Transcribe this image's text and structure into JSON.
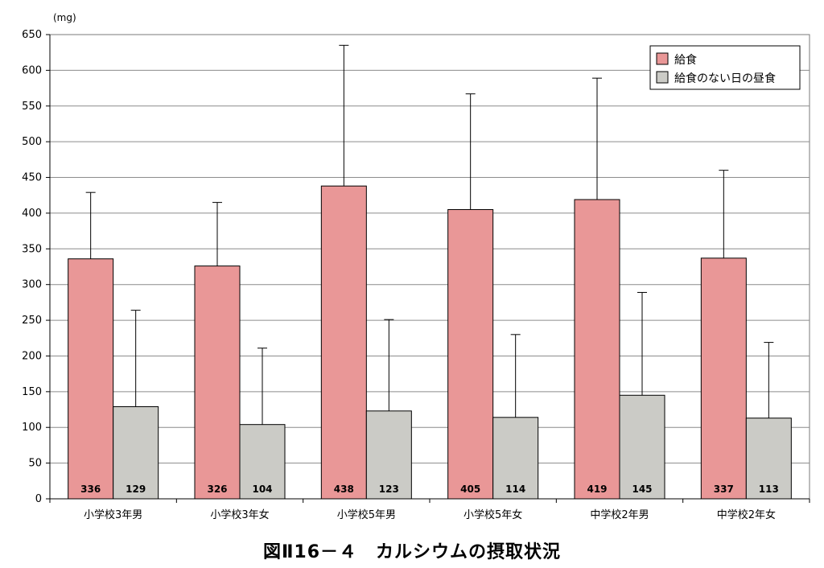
{
  "chart_data": {
    "type": "bar",
    "unit_label": "(mg)",
    "categories": [
      "小学校3年男",
      "小学校3年女",
      "小学校5年男",
      "小学校5年女",
      "中学校2年男",
      "中学校2年女"
    ],
    "series": [
      {
        "name": "給食",
        "color": "#e99797",
        "values": [
          336,
          326,
          438,
          405,
          419,
          337
        ],
        "error_upper": [
          429,
          415,
          635,
          567,
          589,
          460
        ]
      },
      {
        "name": "給食のない日の昼食",
        "color": "#cbcbc6",
        "values": [
          129,
          104,
          123,
          114,
          145,
          113
        ],
        "error_upper": [
          264,
          211,
          251,
          230,
          289,
          219
        ]
      }
    ],
    "data_labels": [
      [
        "336",
        "326",
        "438",
        "405",
        "419",
        "337"
      ],
      [
        "129",
        "104",
        "123",
        "114",
        "145",
        "113"
      ]
    ],
    "ylim": [
      0,
      650
    ],
    "yticks": [
      0,
      50,
      100,
      150,
      200,
      250,
      300,
      350,
      400,
      450,
      500,
      550,
      600,
      650
    ],
    "grid": true,
    "legend_position": "top-right",
    "caption": "図Ⅱ16－４　カルシウムの摂取状況"
  }
}
